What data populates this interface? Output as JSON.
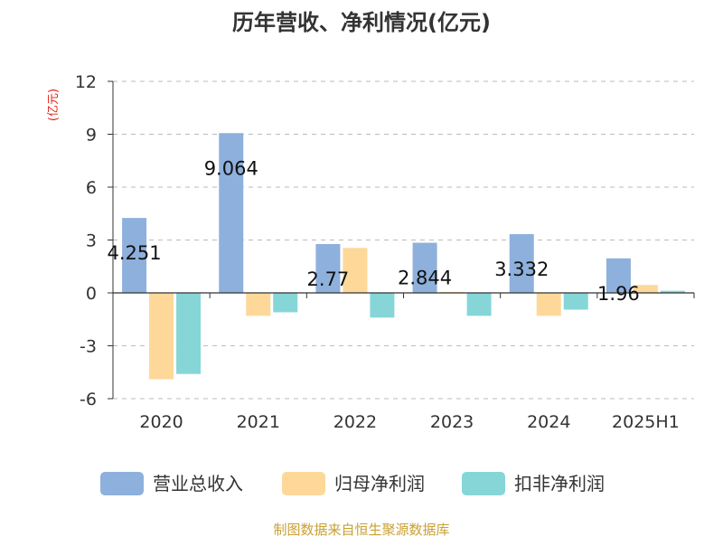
{
  "chart_data": {
    "type": "bar",
    "title": "历年营收、净利情况(亿元)",
    "ylabel": "(亿元)",
    "xlabel": "",
    "categories": [
      "2020",
      "2021",
      "2022",
      "2023",
      "2024",
      "2025H1"
    ],
    "ylim": [
      -6,
      12
    ],
    "yticks": [
      -6,
      -3,
      0,
      3,
      6,
      9,
      12
    ],
    "grid": true,
    "legend_position": "bottom",
    "series": [
      {
        "name": "营业总收入",
        "color": "#8eb0dc",
        "values": [
          4.251,
          9.064,
          2.77,
          2.844,
          3.332,
          1.96
        ],
        "labels": [
          "4.251",
          "9.064",
          "2.77",
          "2.844",
          "3.332",
          "1.96"
        ]
      },
      {
        "name": "归母净利润",
        "color": "#fdd899",
        "values": [
          -4.9,
          -1.3,
          2.55,
          0.05,
          -1.3,
          0.45
        ]
      },
      {
        "name": "扣非净利润",
        "color": "#86d6d8",
        "values": [
          -4.6,
          -1.1,
          -1.4,
          -1.3,
          -0.95,
          0.12
        ]
      }
    ],
    "source": "制图数据来自恒生聚源数据库"
  }
}
